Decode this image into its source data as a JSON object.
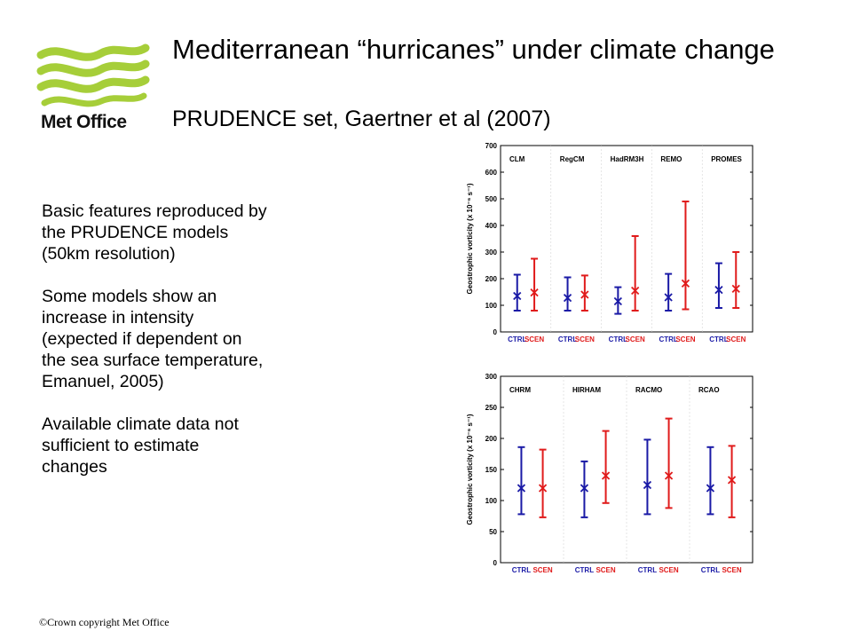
{
  "slide": {
    "title": "Mediterranean “hurricanes” under climate change",
    "subtitle": "PRUDENCE set, Gaertner et al (2007)",
    "bullets": [
      "Basic features reproduced by\nthe PRUDENCE models\n(50km resolution)",
      "Some models show an\nincrease in intensity\n(expected if dependent on\nthe sea surface temperature,\nEmanuel, 2005)",
      "Available climate data not\nsufficient to estimate\nchanges"
    ],
    "footer": "©Crown copyright   Met Office"
  },
  "logo": {
    "text": "Met Office",
    "icon": "met-office-wave-logo",
    "color": "#a6ce39"
  },
  "colors": {
    "ctrl": "#1a1aa6",
    "scen": "#e01b1b"
  },
  "chart_data": [
    {
      "type": "errorbar",
      "ylabel": "Geostrophic vorticity (x 10⁻⁶ s⁻¹)",
      "ylim": [
        0,
        700
      ],
      "yticks": [
        0,
        100,
        200,
        300,
        400,
        500,
        600,
        700
      ],
      "panels": [
        {
          "model": "CLM",
          "ctrl": {
            "label": "CTRL",
            "low": 80,
            "mean": 135,
            "high": 215
          },
          "scen": {
            "label": "SCEN",
            "low": 80,
            "mean": 148,
            "high": 275
          }
        },
        {
          "model": "RegCM",
          "ctrl": {
            "label": "CTRL",
            "low": 80,
            "mean": 128,
            "high": 205
          },
          "scen": {
            "label": "SCEN",
            "low": 80,
            "mean": 140,
            "high": 212
          }
        },
        {
          "model": "HadRM3H",
          "ctrl": {
            "label": "CTRL",
            "low": 68,
            "mean": 115,
            "high": 168
          },
          "scen": {
            "label": "SCEN",
            "low": 80,
            "mean": 155,
            "high": 360
          }
        },
        {
          "model": "REMO",
          "ctrl": {
            "label": "CTRL",
            "low": 80,
            "mean": 130,
            "high": 218
          },
          "scen": {
            "label": "SCEN",
            "low": 85,
            "mean": 182,
            "high": 490
          }
        },
        {
          "model": "PROMES",
          "ctrl": {
            "label": "CTRL",
            "low": 90,
            "mean": 158,
            "high": 258
          },
          "scen": {
            "label": "SCEN",
            "low": 90,
            "mean": 162,
            "high": 300
          }
        }
      ]
    },
    {
      "type": "errorbar",
      "ylabel": "Geostrophic vorticity (x 10⁻⁶ s⁻¹)",
      "ylim": [
        0,
        300
      ],
      "yticks": [
        0,
        50,
        100,
        150,
        200,
        250,
        300
      ],
      "panels": [
        {
          "model": "CHRM",
          "ctrl": {
            "label": "CTRL",
            "low": 78,
            "mean": 120,
            "high": 186
          },
          "scen": {
            "label": "SCEN",
            "low": 73,
            "mean": 120,
            "high": 182
          }
        },
        {
          "model": "HIRHAM",
          "ctrl": {
            "label": "CTRL",
            "low": 73,
            "mean": 120,
            "high": 163
          },
          "scen": {
            "label": "SCEN",
            "low": 96,
            "mean": 140,
            "high": 212
          }
        },
        {
          "model": "RACMO",
          "ctrl": {
            "label": "CTRL",
            "low": 78,
            "mean": 125,
            "high": 198
          },
          "scen": {
            "label": "SCEN",
            "low": 88,
            "mean": 140,
            "high": 232
          }
        },
        {
          "model": "RCAO",
          "ctrl": {
            "label": "CTRL",
            "low": 78,
            "mean": 120,
            "high": 186
          },
          "scen": {
            "label": "SCEN",
            "low": 73,
            "mean": 133,
            "high": 188
          }
        }
      ]
    }
  ]
}
